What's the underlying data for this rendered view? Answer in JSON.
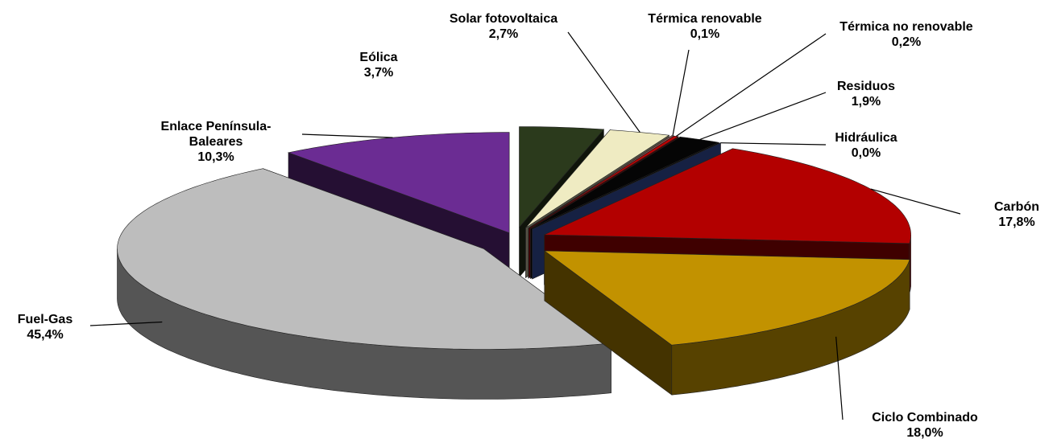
{
  "chart_data": {
    "type": "pie",
    "categories": [
      "Eólica",
      "Solar fotovoltaica",
      "Térmica renovable",
      "Térmica no renovable",
      "Residuos",
      "Hidráulica",
      "Carbón",
      "Ciclo Combinado",
      "Fuel-Gas",
      "Enlace Península-Baleares"
    ],
    "values": [
      3.7,
      2.7,
      0.1,
      0.2,
      1.9,
      0.0,
      17.8,
      18.0,
      45.4,
      10.3
    ],
    "value_labels": [
      "3,7%",
      "2,7%",
      "0,1%",
      "0,2%",
      "1,9%",
      "0,0%",
      "17,8%",
      "18,0%",
      "45,4%",
      "10,3%"
    ],
    "colors": [
      "#2b3a1c",
      "#efebc2",
      "#a85a5a",
      "#c00000",
      "#050505",
      "#3f5fbf",
      "#b30000",
      "#c29200",
      "#bdbdbd",
      "#6b2c93"
    ]
  }
}
